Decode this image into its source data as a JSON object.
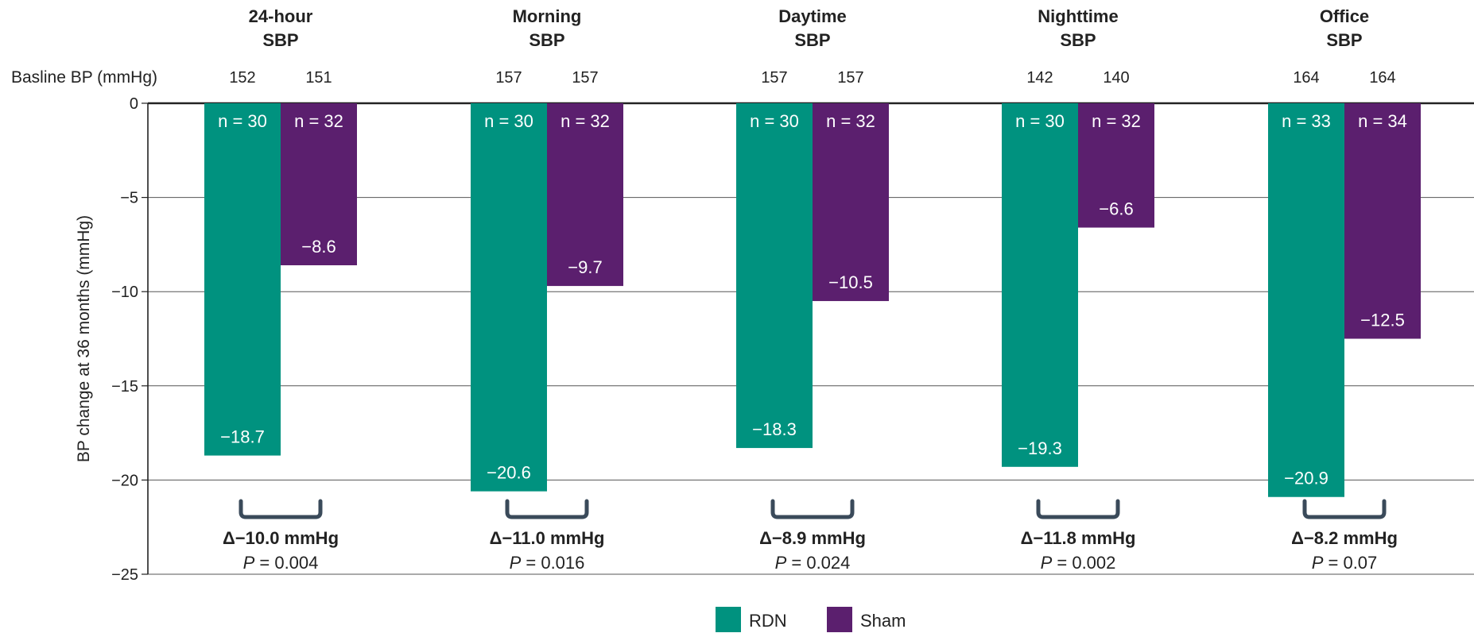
{
  "chart_data": {
    "type": "bar",
    "categories": [
      {
        "line1": "24-hour",
        "line2": "SBP"
      },
      {
        "line1": "Morning",
        "line2": "SBP"
      },
      {
        "line1": "Daytime",
        "line2": "SBP"
      },
      {
        "line1": "Nighttime",
        "line2": "SBP"
      },
      {
        "line1": "Office",
        "line2": "SBP"
      }
    ],
    "series": [
      {
        "name": "RDN",
        "color": "#00927f",
        "values": [
          -18.7,
          -20.6,
          -18.3,
          -19.3,
          -20.9
        ],
        "value_labels": [
          "−18.7",
          "−20.6",
          "−18.3",
          "−19.3",
          "−20.9"
        ],
        "n_labels": [
          "n = 30",
          "n = 30",
          "n = 30",
          "n = 30",
          "n = 33"
        ],
        "baseline": [
          "152",
          "157",
          "157",
          "142",
          "164"
        ]
      },
      {
        "name": "Sham",
        "color": "#5b1f6e",
        "values": [
          -8.6,
          -9.7,
          -10.5,
          -6.6,
          -12.5
        ],
        "value_labels": [
          "−8.6",
          "−9.7",
          "−10.5",
          "−6.6",
          "−12.5"
        ],
        "n_labels": [
          "n = 32",
          "n = 32",
          "n = 32",
          "n = 32",
          "n = 34"
        ],
        "baseline": [
          "151",
          "157",
          "157",
          "140",
          "164"
        ]
      }
    ],
    "differences": [
      {
        "delta": "Δ−10.0 mmHg",
        "p": "= 0.004"
      },
      {
        "delta": "Δ−11.0 mmHg",
        "p": "= 0.016"
      },
      {
        "delta": "Δ−8.9 mmHg",
        "p": "= 0.024"
      },
      {
        "delta": "Δ−11.8 mmHg",
        "p": "= 0.002"
      },
      {
        "delta": "Δ−8.2 mmHg",
        "p": "= 0.07"
      }
    ],
    "p_symbol": "P",
    "baseline_label": "Basline BP (mmHg)",
    "ylabel": "BP change at 36 months (mmHg)",
    "xlabel": "",
    "ylim": [
      -25,
      0
    ],
    "yticks": [
      0,
      -5,
      -10,
      -15,
      -20,
      -25
    ],
    "ytick_labels": [
      "0",
      "−5",
      "−10",
      "−15",
      "−20",
      "−25"
    ],
    "grid": true,
    "legend_position": "bottom-center",
    "bracket_color": "#3a4a5a",
    "grid_color": "#555555"
  }
}
